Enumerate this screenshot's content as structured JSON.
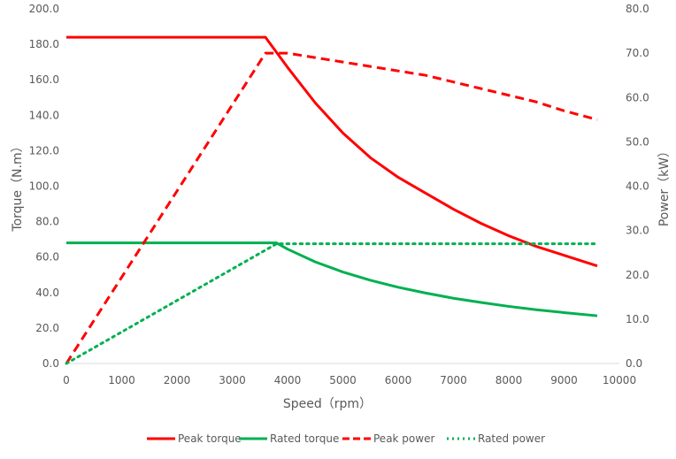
{
  "chart_data": {
    "type": "line",
    "title": "",
    "xlabel": "Speed（rpm）",
    "ylabel": "Torque（N.m）",
    "y2label": "Power（kW）",
    "xlim": [
      0,
      10000
    ],
    "ylim": [
      0,
      200
    ],
    "y2lim": [
      0,
      80
    ],
    "xticks": [
      "0",
      "1000",
      "2000",
      "3000",
      "4000",
      "5000",
      "6000",
      "7000",
      "8000",
      "9000",
      "10000"
    ],
    "yticks": [
      "0.0",
      "20.0",
      "40.0",
      "60.0",
      "80.0",
      "100.0",
      "120.0",
      "140.0",
      "160.0",
      "180.0",
      "200.0"
    ],
    "y2ticks": [
      "0.0",
      "10.0",
      "20.0",
      "30.0",
      "40.0",
      "50.0",
      "60.0",
      "70.0",
      "80.0"
    ],
    "grid": false,
    "legend_position": "bottom",
    "series": [
      {
        "name": "Peak torque",
        "axis": "left",
        "color": "#ff0000",
        "style": "solid",
        "x": [
          0,
          3600,
          4000,
          4500,
          5000,
          5500,
          6000,
          6500,
          7000,
          7500,
          8000,
          8500,
          9000,
          9600
        ],
        "values": [
          184,
          184,
          167,
          147,
          130,
          116,
          105,
          96,
          87,
          79,
          72,
          66,
          61,
          55
        ]
      },
      {
        "name": "Rated torque",
        "axis": "left",
        "color": "#00b050",
        "style": "solid",
        "x": [
          0,
          3800,
          4000,
          4500,
          5000,
          5500,
          6000,
          6500,
          7000,
          7500,
          8000,
          8500,
          9000,
          9600
        ],
        "values": [
          68,
          68,
          64.5,
          57.3,
          51.6,
          46.9,
          43,
          39.7,
          36.8,
          34.4,
          32.2,
          30.3,
          28.7,
          26.9
        ]
      },
      {
        "name": "Peak power",
        "axis": "right",
        "color": "#ff0000",
        "style": "dashed",
        "x": [
          0,
          3600,
          4000,
          5000,
          6000,
          6500,
          7000,
          7500,
          8000,
          8500,
          9000,
          9600
        ],
        "values": [
          0,
          70,
          70,
          68,
          66,
          65,
          63.5,
          62,
          60.5,
          59,
          57,
          55
        ]
      },
      {
        "name": "Rated power",
        "axis": "right",
        "color": "#00b050",
        "style": "dotted",
        "x": [
          0,
          3800,
          9600
        ],
        "values": [
          0,
          27,
          27
        ]
      }
    ]
  }
}
